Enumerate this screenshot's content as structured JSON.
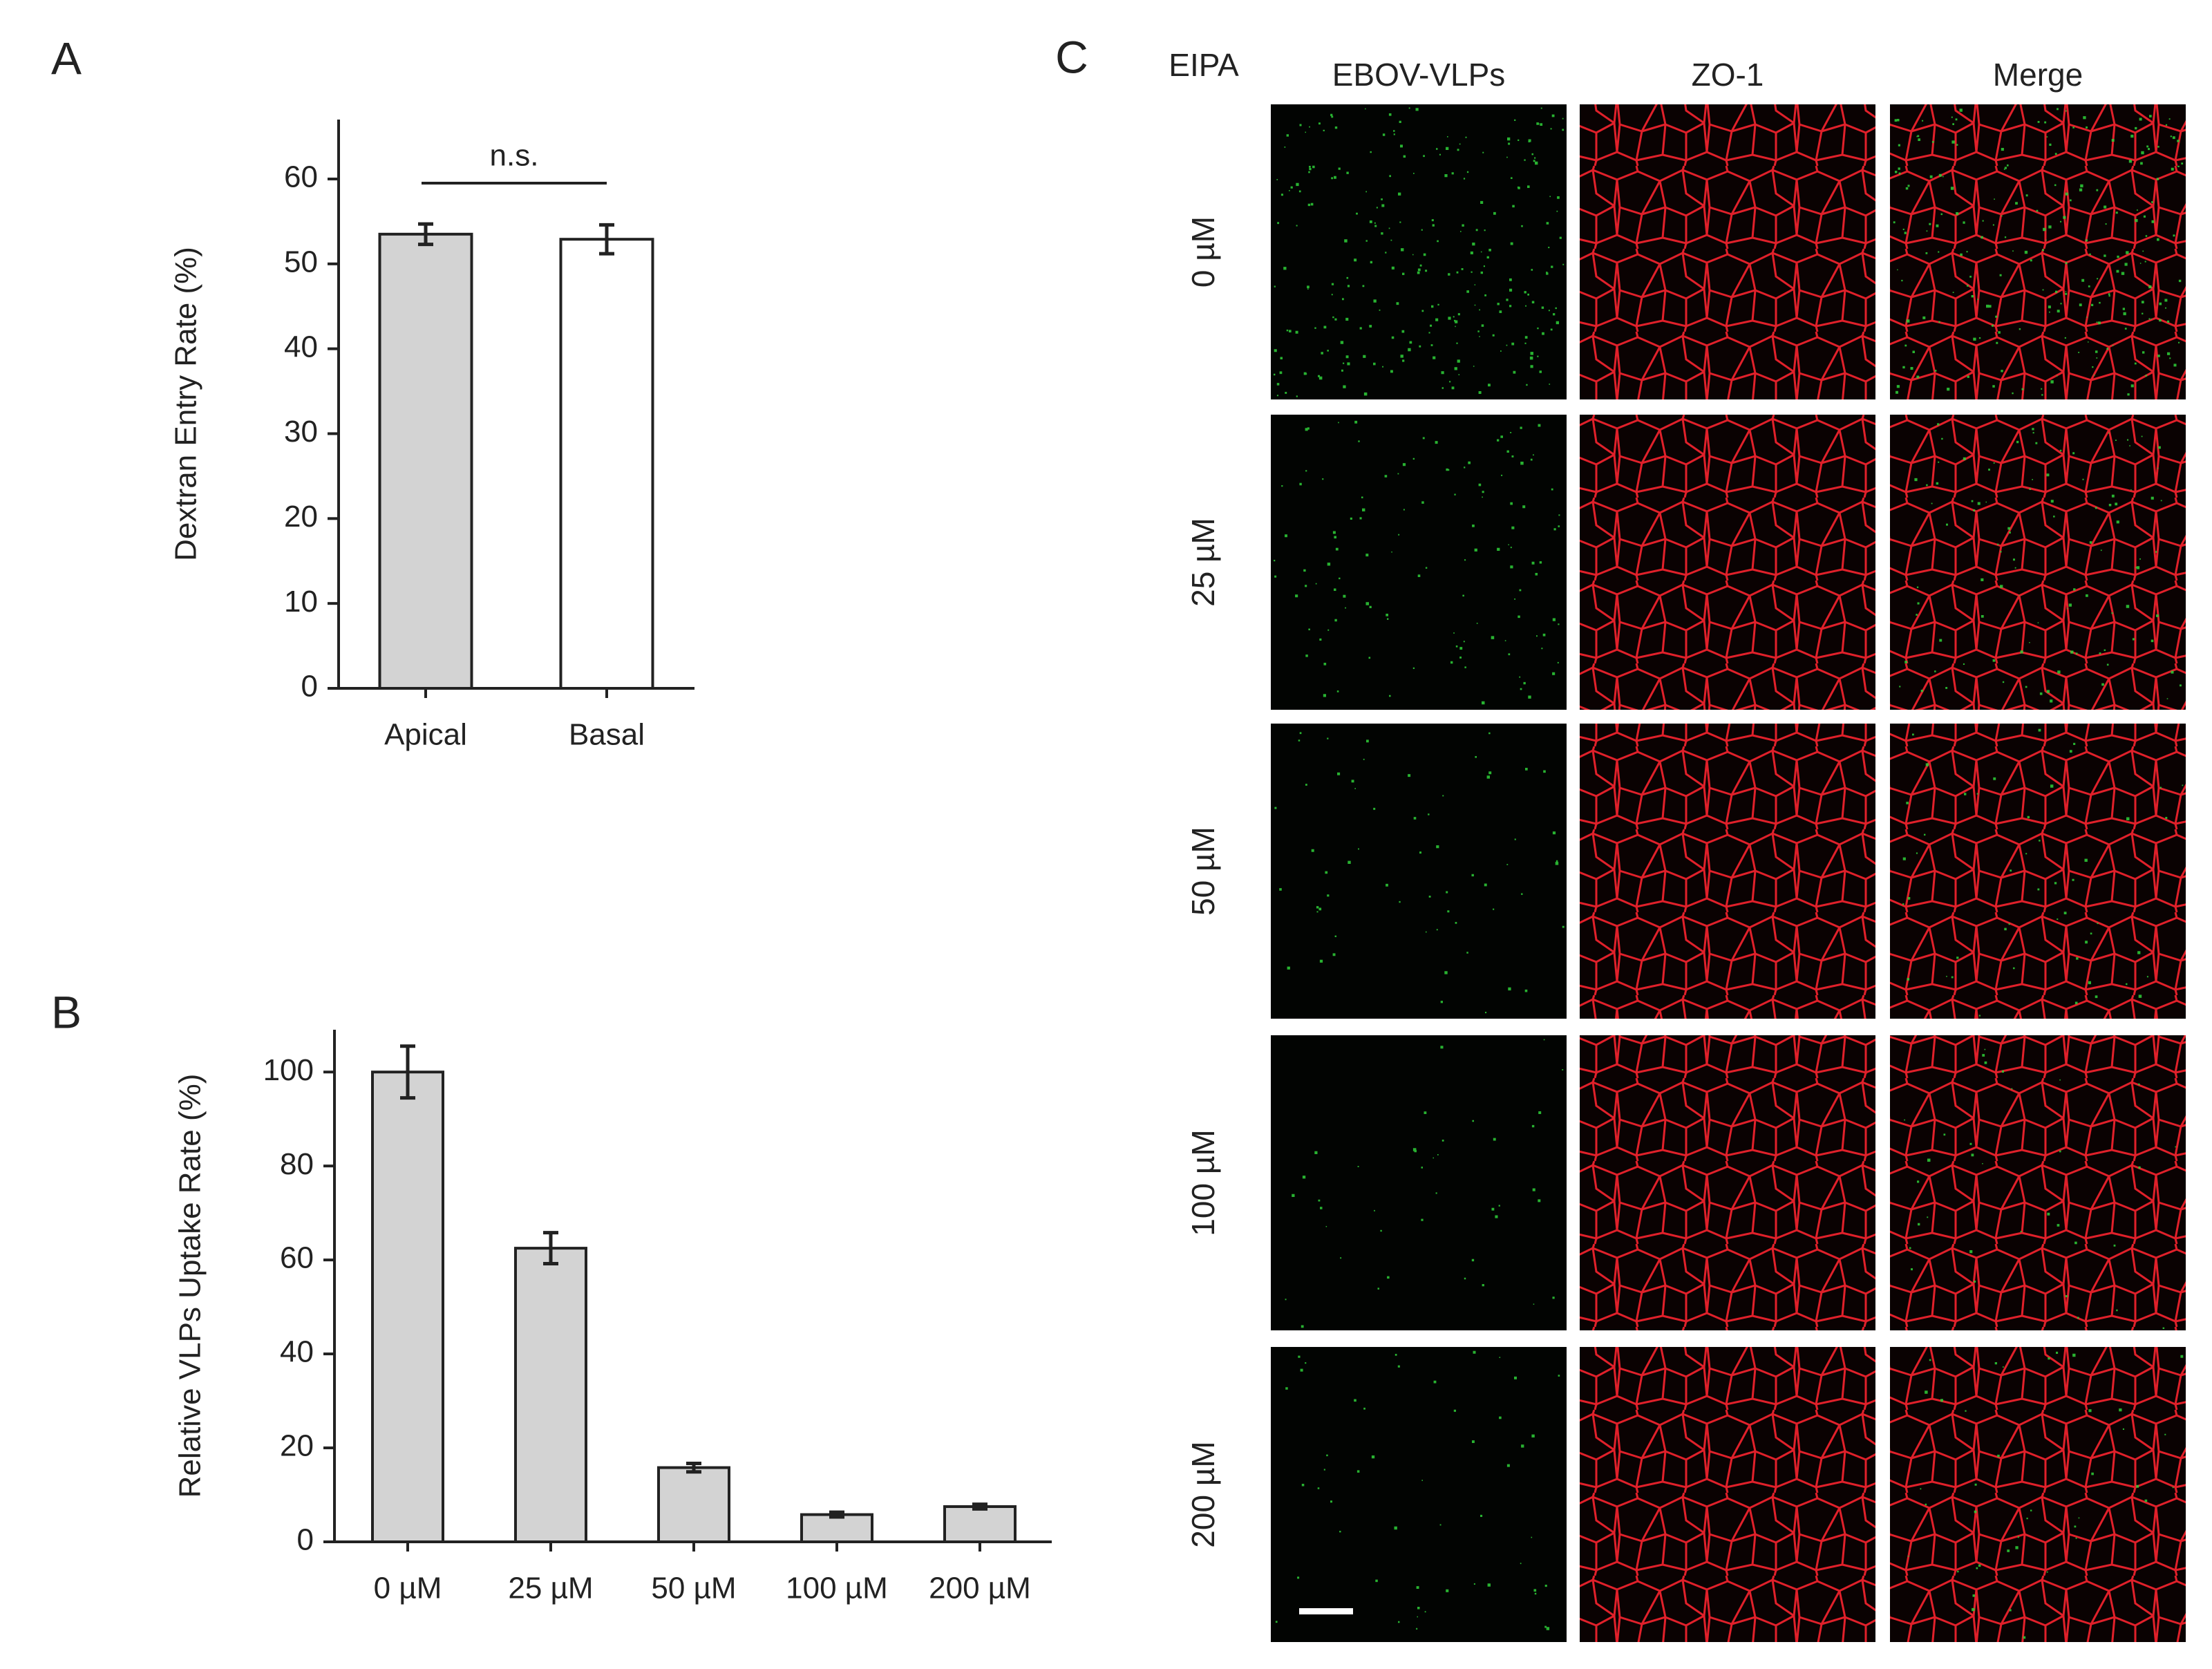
{
  "chart_data": [
    {
      "type": "bar",
      "panel_label": "A",
      "ylabel": "Dextran Entry Rate (%)",
      "categories": [
        "Apical",
        "Basal"
      ],
      "values": [
        53.5,
        52.9
      ],
      "errors": [
        1.2,
        1.7
      ],
      "colors": [
        "#d3d3d3",
        "#ffffff"
      ],
      "ylim": [
        0,
        67
      ],
      "yticks": [
        0,
        10,
        20,
        30,
        40,
        50,
        60
      ],
      "annotation": "n.s."
    },
    {
      "type": "bar",
      "panel_label": "B",
      "ylabel": "Relative VLPs Uptake Rate (%)",
      "categories": [
        "0 µM",
        "25 µM",
        "50 µM",
        "100 µM",
        "200 µM"
      ],
      "values": [
        100,
        62.5,
        15.8,
        5.8,
        7.5
      ],
      "errors": [
        5.5,
        3.3,
        0.9,
        0.5,
        0.5
      ],
      "colors": [
        "#d3d3d3",
        "#d3d3d3",
        "#d3d3d3",
        "#d3d3d3",
        "#d3d3d3"
      ],
      "ylim": [
        0,
        109
      ],
      "yticks": [
        0,
        20,
        40,
        60,
        80,
        100
      ]
    }
  ],
  "panel_c": {
    "panel_label": "C",
    "row_title": "EIPA",
    "columns": [
      "EBOV-VLPs",
      "ZO-1",
      "Merge"
    ],
    "rows": [
      "0 µM",
      "25 µM",
      "50 µM",
      "100 µM",
      "200 µM"
    ]
  }
}
